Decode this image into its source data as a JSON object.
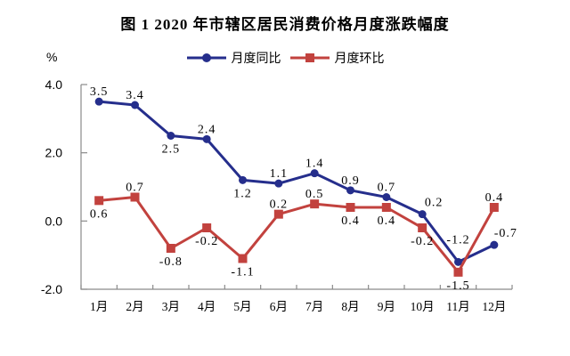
{
  "chart_data": {
    "type": "line",
    "title": "图 1 2020 年市辖区居民消费价格月度涨跌幅度",
    "xlabel": "",
    "ylabel": "%",
    "ylim": [
      -2.0,
      4.0
    ],
    "yticks": [
      4.0,
      2.0,
      0.0,
      -2.0
    ],
    "grid": false,
    "legend_position": "top-center",
    "axis_color": "#8a8a8a",
    "categories": [
      "1月",
      "2月",
      "3月",
      "4月",
      "5月",
      "6月",
      "7月",
      "8月",
      "9月",
      "10月",
      "11月",
      "12月"
    ],
    "series": [
      {
        "name": "月度同比",
        "color": "#252E8C",
        "marker": "circle",
        "values": [
          3.5,
          3.4,
          2.5,
          2.4,
          1.2,
          1.1,
          1.4,
          0.9,
          0.7,
          0.2,
          -1.2,
          -0.7
        ],
        "label_positions": [
          "above",
          "above",
          "below",
          "above",
          "below",
          "above",
          "above",
          "above",
          "above",
          "above-right",
          "above-high",
          "above-right"
        ]
      },
      {
        "name": "月度环比",
        "color": "#C2423E",
        "marker": "square",
        "values": [
          0.6,
          0.7,
          -0.8,
          -0.2,
          -1.1,
          0.2,
          0.5,
          0.4,
          0.4,
          -0.2,
          -1.5,
          0.4
        ],
        "label_positions": [
          "below",
          "above",
          "below",
          "below",
          "below",
          "above",
          "above",
          "below",
          "below",
          "below",
          "below",
          "above"
        ]
      }
    ]
  }
}
